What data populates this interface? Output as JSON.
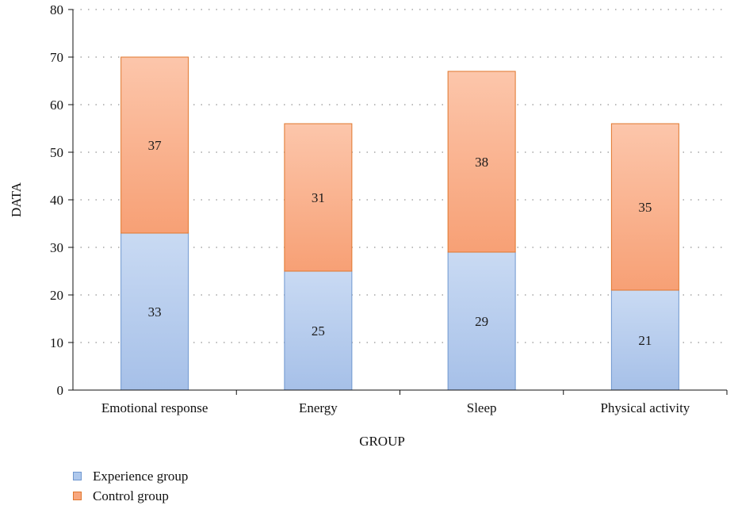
{
  "chart_data": {
    "type": "bar",
    "stacked": true,
    "categories": [
      "Emotional response",
      "Energy",
      "Sleep",
      "Physical activity"
    ],
    "series": [
      {
        "name": "Experience group",
        "values": [
          33,
          25,
          29,
          21
        ],
        "color": "#aec8ec",
        "stroke": "#6f97cf"
      },
      {
        "name": "Control group",
        "values": [
          37,
          31,
          38,
          35
        ],
        "color": "#f8a77e",
        "stroke": "#e0772e"
      }
    ],
    "xlabel": "GROUP",
    "ylabel": "DATA",
    "ylim": [
      0,
      80
    ],
    "yticks": [
      0,
      10,
      20,
      30,
      40,
      50,
      60,
      70,
      80
    ],
    "grid": "horizontal-dotted",
    "legend": "bottom-left"
  }
}
